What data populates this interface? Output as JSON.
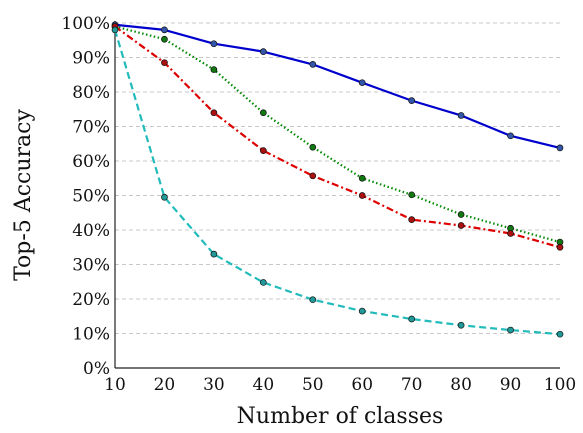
{
  "chart_data": {
    "type": "line",
    "title": "",
    "xlabel": "Number of classes",
    "ylabel": "Top-5 Accuracy",
    "x": [
      10,
      20,
      30,
      40,
      50,
      60,
      70,
      80,
      90,
      100
    ],
    "xlim": [
      10,
      100
    ],
    "ylim": [
      0,
      100
    ],
    "xticks": [
      "10",
      "20",
      "30",
      "40",
      "50",
      "60",
      "70",
      "80",
      "90",
      "100"
    ],
    "yticks": [
      {
        "value": 0,
        "label": "0%"
      },
      {
        "value": 10,
        "label": "10%"
      },
      {
        "value": 20,
        "label": "20%"
      },
      {
        "value": 30,
        "label": "30%"
      },
      {
        "value": 40,
        "label": "40%"
      },
      {
        "value": 50,
        "label": "50%"
      },
      {
        "value": 60,
        "label": "60%"
      },
      {
        "value": 70,
        "label": "70%"
      },
      {
        "value": 80,
        "label": "80%"
      },
      {
        "value": 90,
        "label": "90%"
      },
      {
        "value": 100,
        "label": "100%"
      }
    ],
    "grid": "horizontal dashed",
    "legend": "none",
    "series": [
      {
        "color": "#0000cc",
        "marker_color": "#3355aa",
        "style": "solid",
        "values": [
          99.5,
          98,
          94,
          91.7,
          88,
          82.7,
          77.5,
          73.2,
          67.3,
          63.8
        ]
      },
      {
        "color": "#008800",
        "marker_color": "#117711",
        "style": "dotted",
        "values": [
          99,
          95.3,
          86.5,
          74,
          64,
          55,
          50.2,
          44.5,
          40.5,
          36.5
        ]
      },
      {
        "color": "#dd0000",
        "marker_color": "#aa1111",
        "style": "dashdot",
        "values": [
          99,
          88.5,
          74,
          63,
          55.7,
          50,
          43,
          41.3,
          39,
          35
        ]
      },
      {
        "color": "#22bbbb",
        "marker_color": "#229999",
        "style": "dashed",
        "values": [
          98,
          49.5,
          33,
          24.8,
          19.8,
          16.5,
          14.2,
          12.4,
          11,
          9.8
        ]
      }
    ]
  }
}
